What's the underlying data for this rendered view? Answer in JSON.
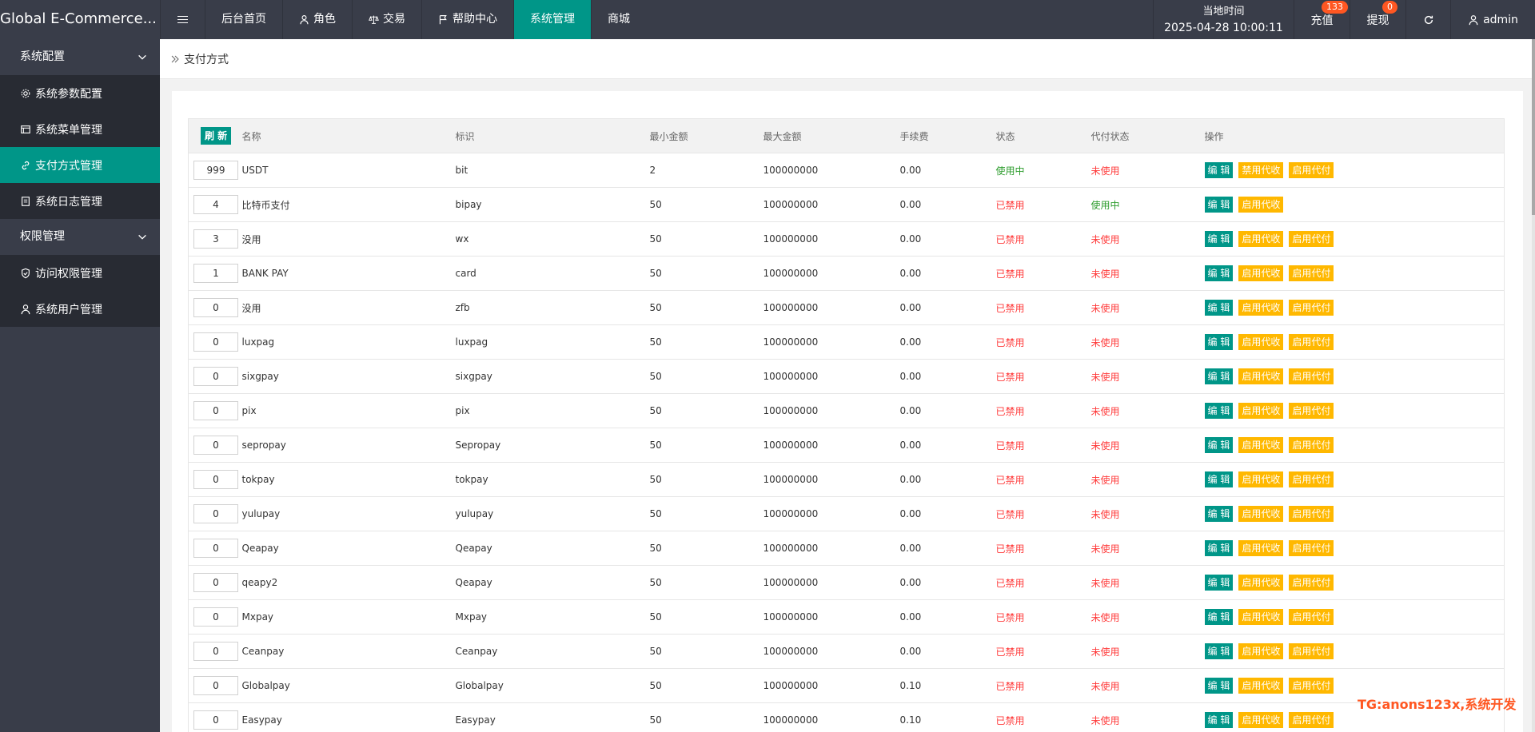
{
  "app": {
    "title": "Global E-Commerce..."
  },
  "topnav": [
    {
      "label": "后台首页",
      "icon": ""
    },
    {
      "label": "角色",
      "icon": "user-icon"
    },
    {
      "label": "交易",
      "icon": "scale-icon"
    },
    {
      "label": "帮助中心",
      "icon": "flag-icon"
    },
    {
      "label": "系统管理",
      "icon": ""
    },
    {
      "label": "商城",
      "icon": ""
    }
  ],
  "topright": {
    "clock_label": "当地时间",
    "clock_value": "2025-04-28 10:00:11",
    "recharge": "充值",
    "recharge_badge": "133",
    "withdraw": "提现",
    "withdraw_badge": "0",
    "user": "admin"
  },
  "sidebar": {
    "groups": [
      {
        "label": "系统配置",
        "items": [
          "系统参数配置",
          "系统菜单管理",
          "支付方式管理",
          "系统日志管理"
        ]
      },
      {
        "label": "权限管理",
        "items": [
          "访问权限管理",
          "系统用户管理"
        ]
      }
    ]
  },
  "breadcrumb": "支付方式",
  "table": {
    "refresh": "刷 新",
    "headers": [
      "名称",
      "标识",
      "最小金额",
      "最大金额",
      "手续费",
      "状态",
      "代付状态",
      "操作"
    ],
    "edit_label": "编 辑",
    "rows": [
      {
        "sort": "999",
        "name": "USDT",
        "code": "bit",
        "min": "2",
        "max": "100000000",
        "fee": "0.00",
        "status": "使用中",
        "payout": "未使用",
        "actions": [
          "编 辑",
          "禁用代收",
          "启用代付"
        ]
      },
      {
        "sort": "4",
        "name": "比特币支付",
        "code": "bipay",
        "min": "50",
        "max": "100000000",
        "fee": "0.00",
        "status": "已禁用",
        "payout": "使用中",
        "actions": [
          "编 辑",
          "启用代收"
        ]
      },
      {
        "sort": "3",
        "name": "没用",
        "code": "wx",
        "min": "50",
        "max": "100000000",
        "fee": "0.00",
        "status": "已禁用",
        "payout": "未使用",
        "actions": [
          "编 辑",
          "启用代收",
          "启用代付"
        ]
      },
      {
        "sort": "1",
        "name": "BANK PAY",
        "code": "card",
        "min": "50",
        "max": "100000000",
        "fee": "0.00",
        "status": "已禁用",
        "payout": "未使用",
        "actions": [
          "编 辑",
          "启用代收",
          "启用代付"
        ]
      },
      {
        "sort": "0",
        "name": "没用",
        "code": "zfb",
        "min": "50",
        "max": "100000000",
        "fee": "0.00",
        "status": "已禁用",
        "payout": "未使用",
        "actions": [
          "编 辑",
          "启用代收",
          "启用代付"
        ]
      },
      {
        "sort": "0",
        "name": "luxpag",
        "code": "luxpag",
        "min": "50",
        "max": "100000000",
        "fee": "0.00",
        "status": "已禁用",
        "payout": "未使用",
        "actions": [
          "编 辑",
          "启用代收",
          "启用代付"
        ]
      },
      {
        "sort": "0",
        "name": "sixgpay",
        "code": "sixgpay",
        "min": "50",
        "max": "100000000",
        "fee": "0.00",
        "status": "已禁用",
        "payout": "未使用",
        "actions": [
          "编 辑",
          "启用代收",
          "启用代付"
        ]
      },
      {
        "sort": "0",
        "name": "pix",
        "code": "pix",
        "min": "50",
        "max": "100000000",
        "fee": "0.00",
        "status": "已禁用",
        "payout": "未使用",
        "actions": [
          "编 辑",
          "启用代收",
          "启用代付"
        ]
      },
      {
        "sort": "0",
        "name": "sepropay",
        "code": "Sepropay",
        "min": "50",
        "max": "100000000",
        "fee": "0.00",
        "status": "已禁用",
        "payout": "未使用",
        "actions": [
          "编 辑",
          "启用代收",
          "启用代付"
        ]
      },
      {
        "sort": "0",
        "name": "tokpay",
        "code": "tokpay",
        "min": "50",
        "max": "100000000",
        "fee": "0.00",
        "status": "已禁用",
        "payout": "未使用",
        "actions": [
          "编 辑",
          "启用代收",
          "启用代付"
        ]
      },
      {
        "sort": "0",
        "name": "yulupay",
        "code": "yulupay",
        "min": "50",
        "max": "100000000",
        "fee": "0.00",
        "status": "已禁用",
        "payout": "未使用",
        "actions": [
          "编 辑",
          "启用代收",
          "启用代付"
        ]
      },
      {
        "sort": "0",
        "name": "Qeapay",
        "code": "Qeapay",
        "min": "50",
        "max": "100000000",
        "fee": "0.00",
        "status": "已禁用",
        "payout": "未使用",
        "actions": [
          "编 辑",
          "启用代收",
          "启用代付"
        ]
      },
      {
        "sort": "0",
        "name": "qeapy2",
        "code": "Qeapay",
        "min": "50",
        "max": "100000000",
        "fee": "0.00",
        "status": "已禁用",
        "payout": "未使用",
        "actions": [
          "编 辑",
          "启用代收",
          "启用代付"
        ]
      },
      {
        "sort": "0",
        "name": "Mxpay",
        "code": "Mxpay",
        "min": "50",
        "max": "100000000",
        "fee": "0.00",
        "status": "已禁用",
        "payout": "未使用",
        "actions": [
          "编 辑",
          "启用代收",
          "启用代付"
        ]
      },
      {
        "sort": "0",
        "name": "Ceanpay",
        "code": "Ceanpay",
        "min": "50",
        "max": "100000000",
        "fee": "0.00",
        "status": "已禁用",
        "payout": "未使用",
        "actions": [
          "编 辑",
          "启用代收",
          "启用代付"
        ]
      },
      {
        "sort": "0",
        "name": "Globalpay",
        "code": "Globalpay",
        "min": "50",
        "max": "100000000",
        "fee": "0.10",
        "status": "已禁用",
        "payout": "未使用",
        "actions": [
          "编 辑",
          "启用代收",
          "启用代付"
        ]
      },
      {
        "sort": "0",
        "name": "Easypay",
        "code": "Easypay",
        "min": "50",
        "max": "100000000",
        "fee": "0.10",
        "status": "已禁用",
        "payout": "未使用",
        "actions": [
          "编 辑",
          "启用代收",
          "启用代付"
        ]
      }
    ]
  },
  "watermark": "TG:anons123x,系统开发",
  "colors": {
    "accent": "#009688",
    "topbar": "#393d49",
    "warn": "#ffb800",
    "danger": "#ff3b3b",
    "badge": "#ff5722"
  }
}
